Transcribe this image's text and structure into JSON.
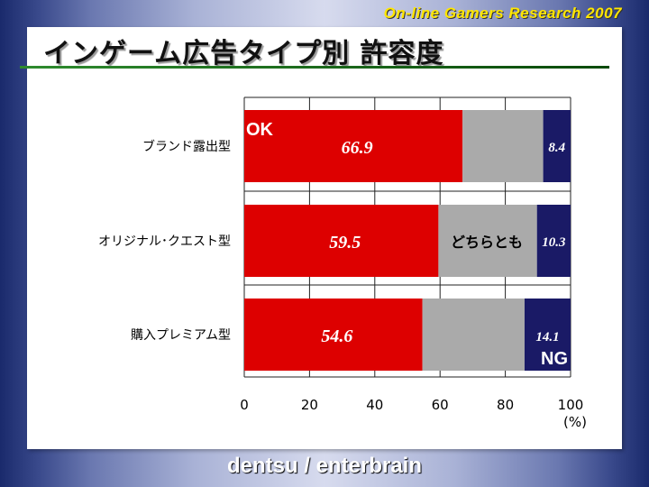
{
  "header_tag": "On-line Gamers Research 2007",
  "title": "インゲーム広告タイプ別 許容度",
  "footer": "dentsu / enterbrain",
  "colors": {
    "ok": "#dd0000",
    "neutral": "#aaaaaa",
    "ng": "#1a1a66"
  },
  "chart_data": {
    "type": "bar",
    "orientation": "horizontal",
    "stacked": true,
    "categories": [
      "ブランド露出型",
      "オリジナル･クエスト型",
      "購入プレミアム型"
    ],
    "series": [
      {
        "name": "OK",
        "values": [
          66.9,
          59.5,
          54.6
        ],
        "labels": [
          "66.9",
          "59.5",
          "54.6"
        ]
      },
      {
        "name": "どちらとも",
        "values": [
          24.7,
          30.2,
          31.3
        ]
      },
      {
        "name": "NG",
        "values": [
          8.4,
          10.3,
          14.1
        ],
        "labels": [
          "8.4",
          "10.3",
          "14.1"
        ]
      }
    ],
    "annotations": {
      "ok": "OK",
      "neutral": "どちらとも",
      "ng": "NG"
    },
    "xlim": [
      0,
      100
    ],
    "xticks": [
      "0",
      "20",
      "40",
      "60",
      "80",
      "100"
    ],
    "xunit": "(%)",
    "grid": true
  }
}
